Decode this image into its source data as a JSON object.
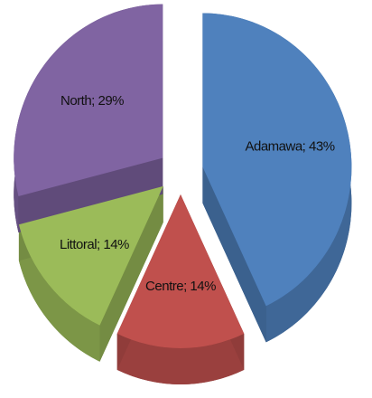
{
  "chart_data": {
    "type": "pie",
    "categories": [
      "Adamawa",
      "Centre",
      "Littoral",
      "North"
    ],
    "values": [
      43,
      14,
      14,
      29
    ],
    "value_labels": [
      "Adamawa; 43%",
      "Centre; 14%",
      "Littoral; 14%",
      "North; 29%"
    ],
    "colors": [
      "#4f81bd",
      "#c0504d",
      "#9bbb59",
      "#8064a2"
    ]
  }
}
